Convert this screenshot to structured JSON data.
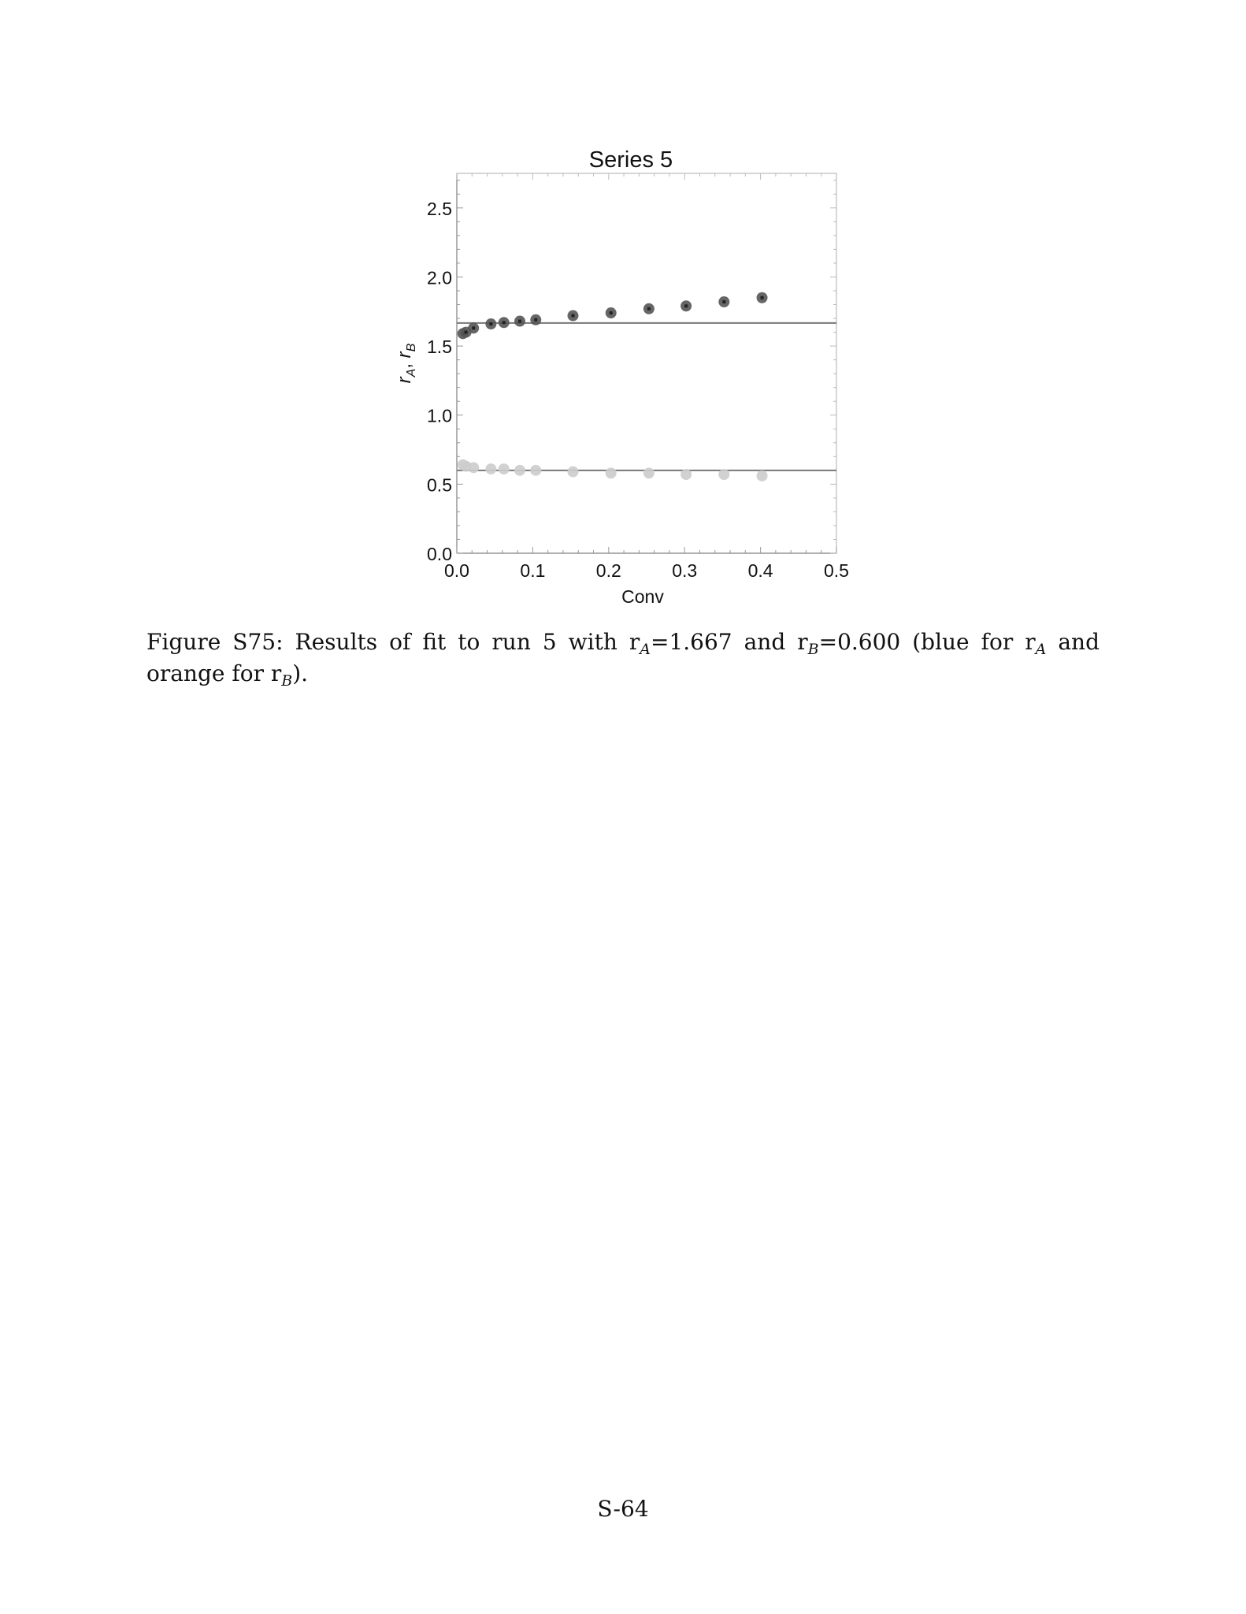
{
  "chart_data": {
    "type": "scatter",
    "title": "Series 5",
    "xlabel": "Conv",
    "ylabel": {
      "main1": "r",
      "sub1": "A",
      "sep": ", ",
      "main2": "r",
      "sub2": "B"
    },
    "xlim": [
      0,
      0.5
    ],
    "ylim": [
      0,
      2.75
    ],
    "x_ticks": [
      "0.0",
      "0.1",
      "0.2",
      "0.3",
      "0.4",
      "0.5"
    ],
    "y_ticks": [
      "0.0",
      "0.5",
      "1.0",
      "1.5",
      "2.0",
      "2.5"
    ],
    "grid": false,
    "series": [
      {
        "color": "#555555",
        "x": [
          0.008,
          0.012,
          0.022,
          0.045,
          0.062,
          0.083,
          0.104,
          0.153,
          0.203,
          0.253,
          0.302,
          0.352,
          0.402
        ],
        "y": [
          1.59,
          1.6,
          1.63,
          1.66,
          1.67,
          1.68,
          1.69,
          1.72,
          1.74,
          1.77,
          1.79,
          1.82,
          1.85
        ]
      },
      {
        "color": "#cccccc",
        "x": [
          0.008,
          0.012,
          0.022,
          0.045,
          0.062,
          0.083,
          0.104,
          0.153,
          0.203,
          0.253,
          0.302,
          0.352,
          0.402
        ],
        "y": [
          0.64,
          0.63,
          0.62,
          0.61,
          0.61,
          0.6,
          0.6,
          0.59,
          0.58,
          0.58,
          0.57,
          0.57,
          0.56
        ]
      }
    ],
    "reference_lines": [
      {
        "y": 1.667,
        "color": "#777777"
      },
      {
        "y": 0.6,
        "color": "#777777"
      }
    ]
  },
  "caption": {
    "part1": "Figure S75: Results of fit to run 5 with r",
    "sub1": "A",
    "part2": "=1.667 and r",
    "sub2": "B",
    "part3": "=0.600 (blue for r",
    "sub3": "A",
    "part4": " and orange for r",
    "sub4": "B",
    "part5": ")."
  },
  "page_number": "S-64"
}
